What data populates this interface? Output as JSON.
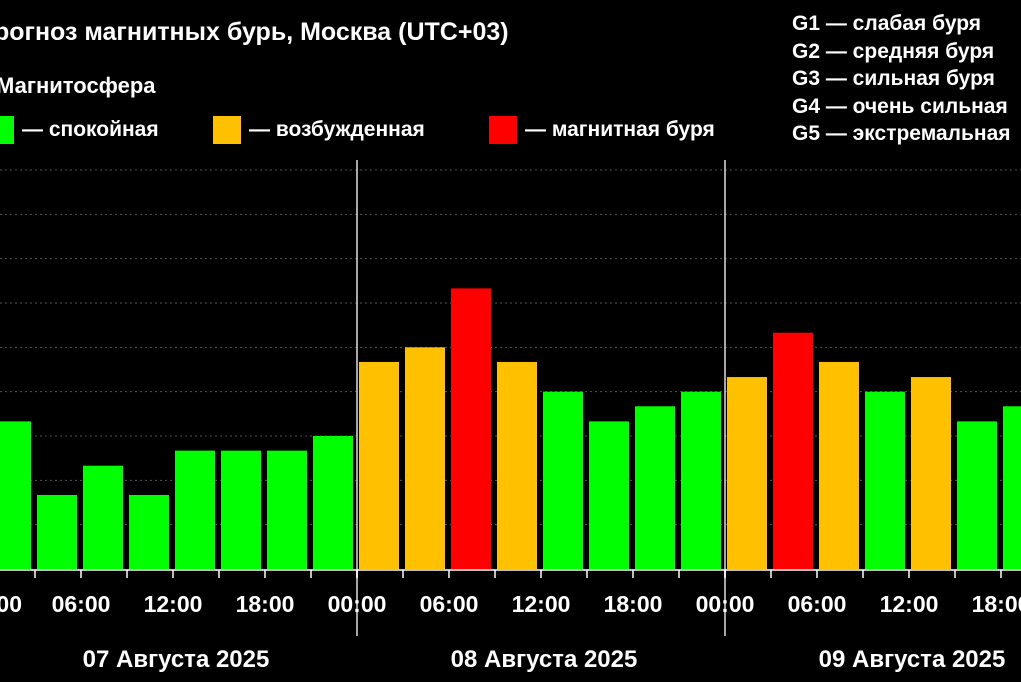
{
  "header": {
    "title": "рогноз магнитных бурь, Москва (UTC+03)",
    "subtitle": "Магнитосфера"
  },
  "legend": [
    {
      "label": "— спокойная",
      "color": "#00ff00"
    },
    {
      "label": "— возбужденная",
      "color": "#ffc000"
    },
    {
      "label": "— магнитная буря",
      "color": "#ff0000"
    }
  ],
  "g_scale": [
    "G1 — слабая буря",
    "G2 — средняя буря",
    "G3 — сильная буря",
    "G4 — очень сильная",
    "G5 — экстремальная"
  ],
  "chart_data": {
    "type": "bar",
    "title": "рогноз магнитных бурь, Москва (UTC+03)",
    "xlabel": "",
    "ylabel": "",
    "ylim": [
      0,
      9
    ],
    "grid": true,
    "legend_position": "top",
    "x_tick_labels": [
      "00",
      "06:00",
      "12:00",
      "18:00",
      "00:00",
      "06:00",
      "12:00",
      "18:00",
      "00:00",
      "06:00",
      "12:00",
      "18:00"
    ],
    "day_labels": [
      "07 Августа 2025",
      "08 Августа 2025",
      "09 Августа 2025"
    ],
    "colors": {
      "calm": "#00ff00",
      "excited": "#ffc000",
      "storm": "#ff0000"
    },
    "days": [
      {
        "label": "07 Августа 2025",
        "values": [
          3.33,
          1.67,
          2.33,
          1.67,
          2.67,
          2.67,
          2.67,
          3.0
        ],
        "levels": [
          "calm",
          "calm",
          "calm",
          "calm",
          "calm",
          "calm",
          "calm",
          "calm"
        ]
      },
      {
        "label": "08 Августа 2025",
        "values": [
          4.67,
          5.0,
          6.33,
          4.67,
          4.0,
          3.33,
          3.67,
          4.0
        ],
        "levels": [
          "excited",
          "excited",
          "storm",
          "excited",
          "calm",
          "calm",
          "calm",
          "calm"
        ]
      },
      {
        "label": "09 Августа 2025",
        "values": [
          4.33,
          5.33,
          4.67,
          4.0,
          4.33,
          3.33,
          3.67
        ],
        "levels": [
          "excited",
          "storm",
          "excited",
          "calm",
          "excited",
          "calm",
          "calm"
        ]
      }
    ]
  }
}
